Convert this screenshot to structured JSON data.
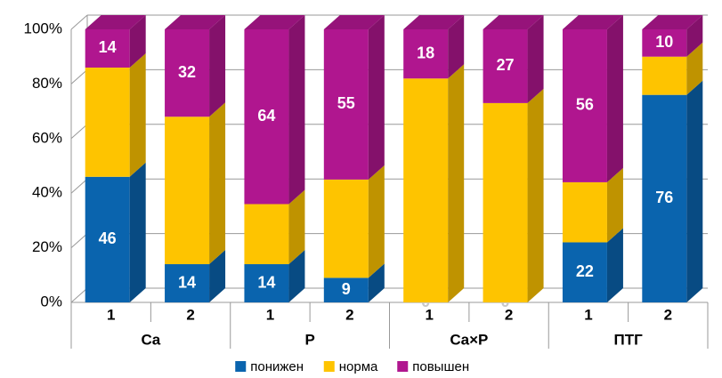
{
  "chart_data": {
    "type": "stacked_bar_3d",
    "categories": [
      "1",
      "2",
      "1",
      "2",
      "1",
      "2",
      "1",
      "2"
    ],
    "groups": [
      "Ca",
      "P",
      "Ca×P",
      "ПТГ"
    ],
    "series": [
      {
        "name": "понижен",
        "color": "#0a64ae",
        "labels": true,
        "values": [
          46,
          14,
          14,
          9,
          0,
          0,
          22,
          76
        ]
      },
      {
        "name": "норма",
        "color": "#fec400",
        "labels": false,
        "values": [
          40,
          54,
          22,
          36,
          82,
          73,
          22,
          14
        ]
      },
      {
        "name": "повышен",
        "color": "#b0168f",
        "labels": true,
        "values": [
          14,
          32,
          64,
          55,
          18,
          27,
          56,
          10
        ]
      }
    ],
    "ylim": [
      0,
      100
    ],
    "yticks": [
      {
        "value": 0,
        "label": "0%"
      },
      {
        "value": 20,
        "label": "20%"
      },
      {
        "value": 40,
        "label": "40%"
      },
      {
        "value": 60,
        "label": "60%"
      },
      {
        "value": 80,
        "label": "80%"
      },
      {
        "value": 100,
        "label": "100%"
      }
    ],
    "grid": true,
    "legend": "bottom"
  }
}
